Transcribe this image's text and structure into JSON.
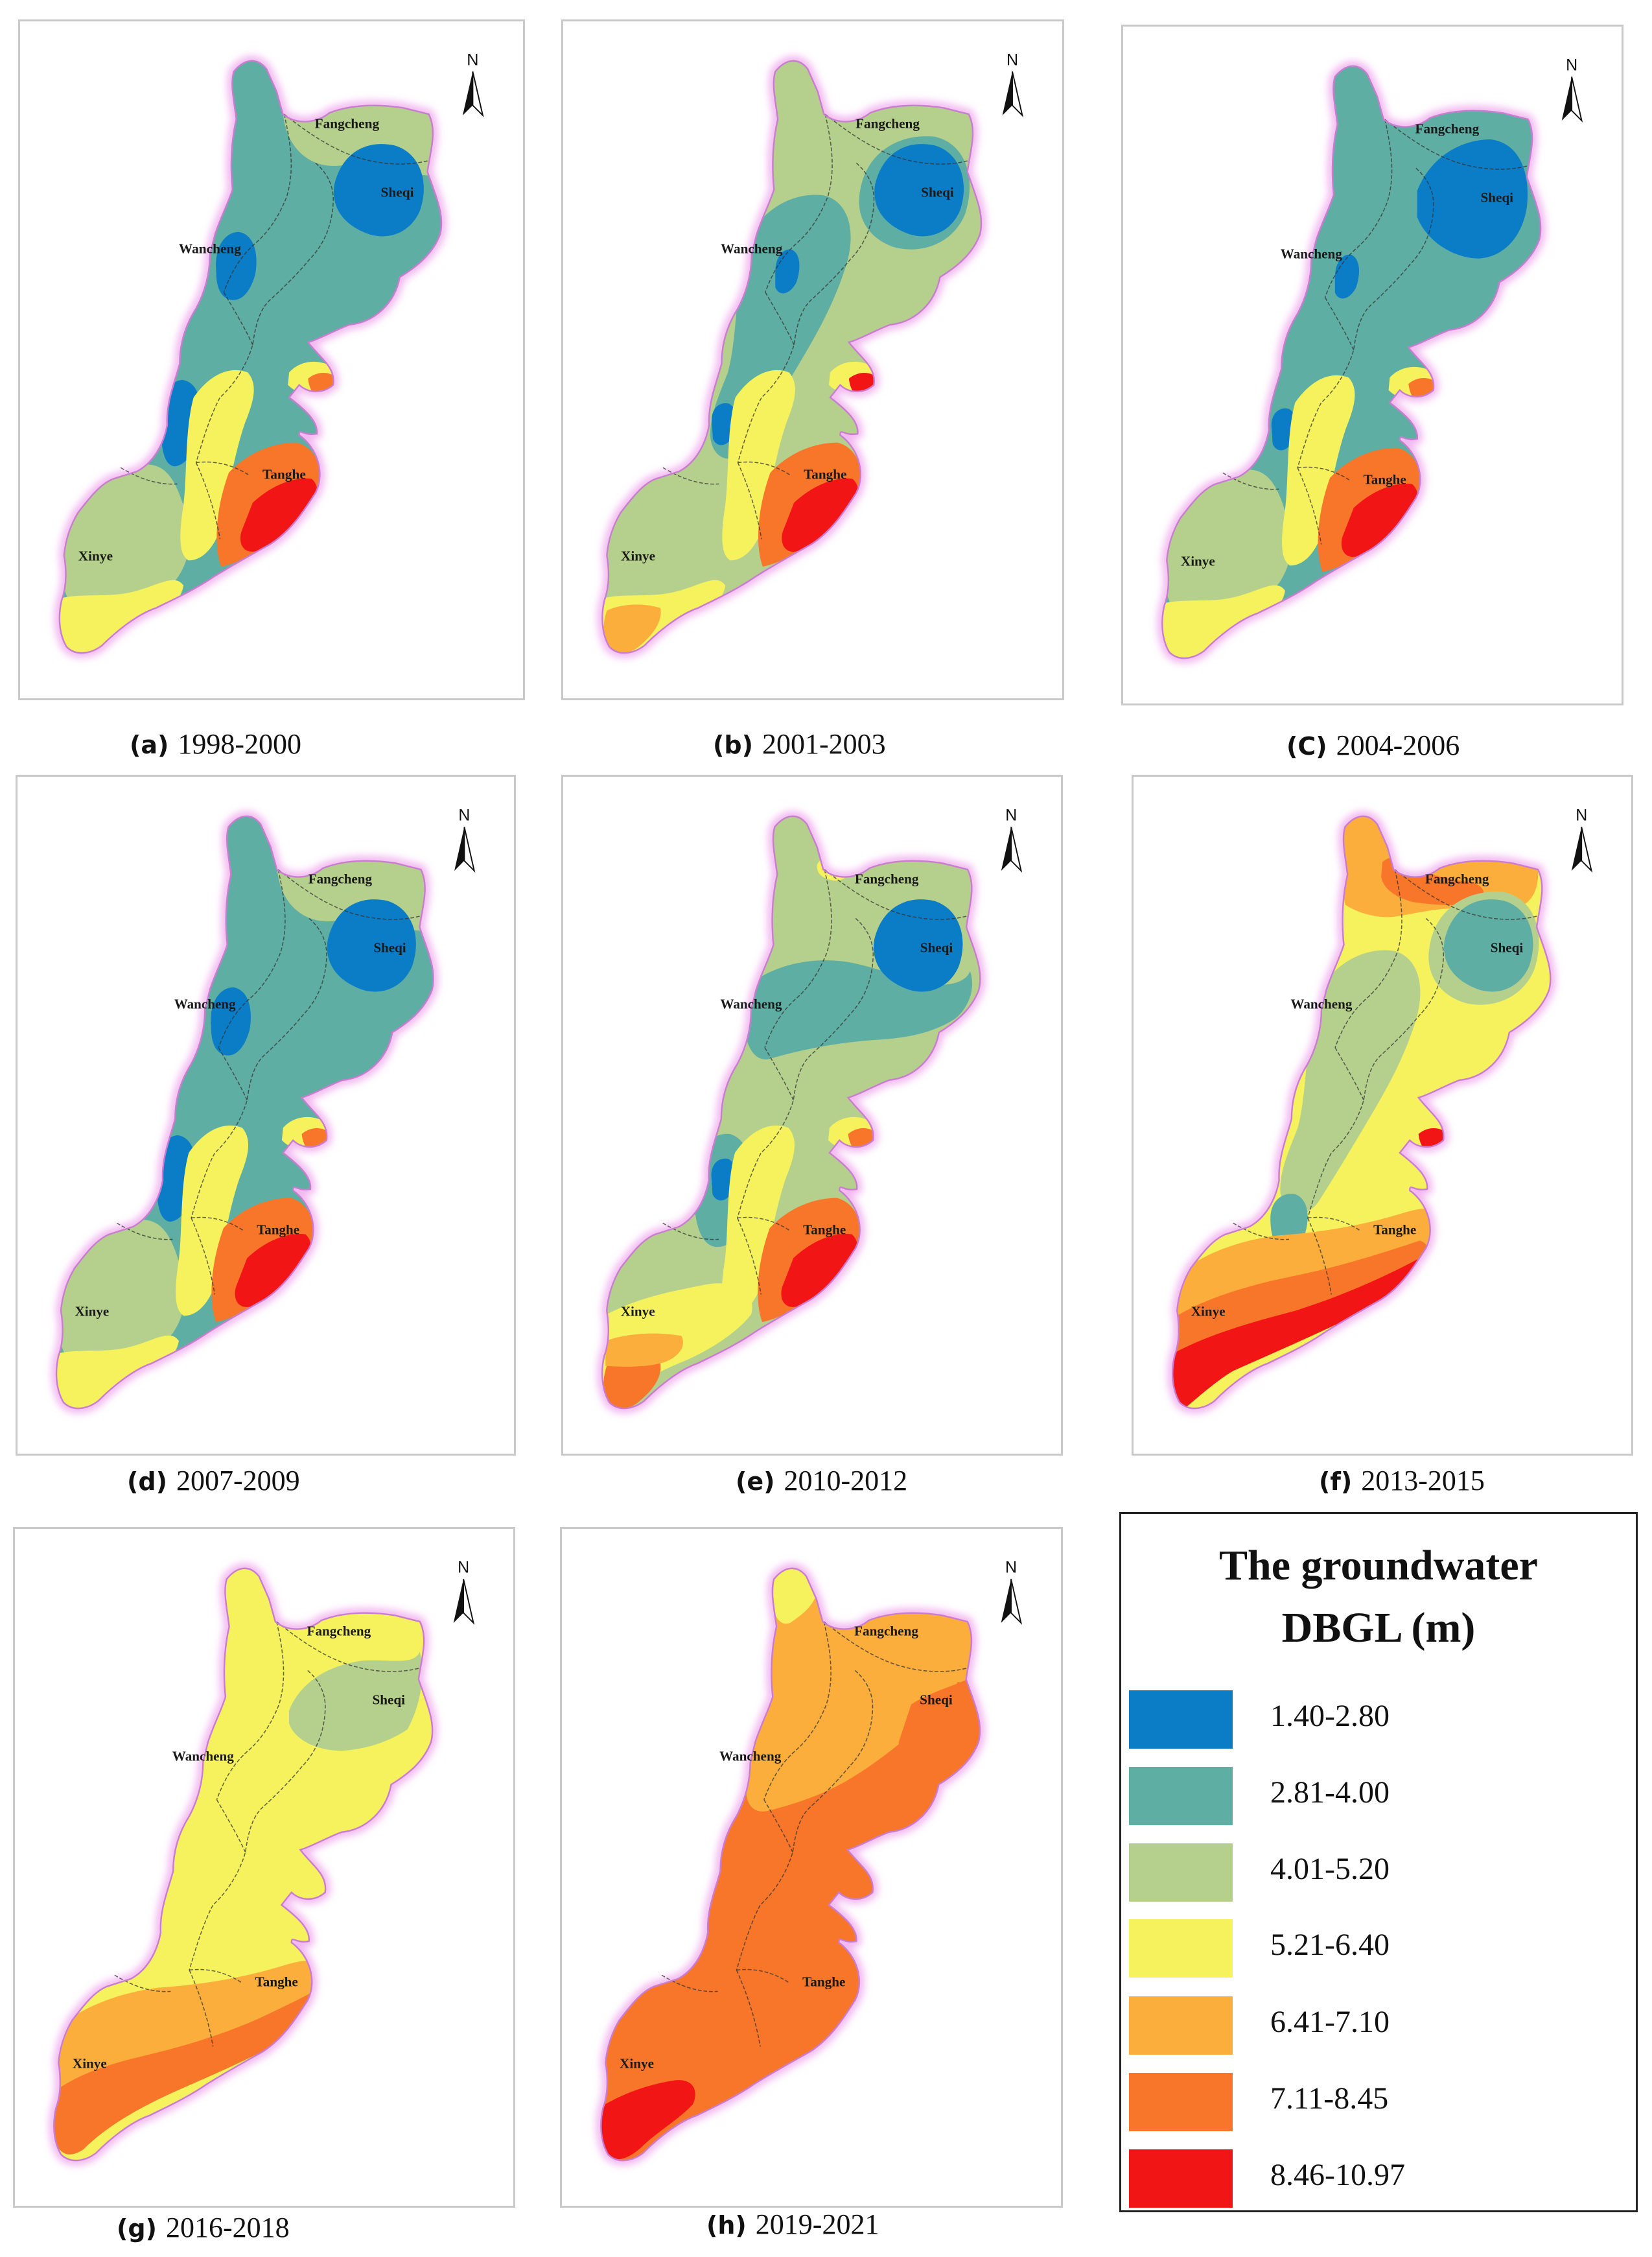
{
  "north_label": "N",
  "place_names": {
    "fangcheng": "Fangcheng",
    "sheqi": "Sheqi",
    "wancheng": "Wancheng",
    "tanghe": "Tanghe",
    "xinye": "Xinye"
  },
  "classes": [
    {
      "range": "1.40-2.80",
      "color": "#0b7dc6"
    },
    {
      "range": "2.81-4.00",
      "color": "#5faea3"
    },
    {
      "range": "4.01-5.20",
      "color": "#b5d08c"
    },
    {
      "range": "5.21-6.40",
      "color": "#f5f25e"
    },
    {
      "range": "6.41-7.10",
      "color": "#fbae3c"
    },
    {
      "range": "7.11-8.45",
      "color": "#f8762a"
    },
    {
      "range": "8.46-10.97",
      "color": "#f21515"
    }
  ],
  "legend": {
    "title_line1": "The groundwater",
    "title_line2": "DBGL (m)"
  },
  "panels": [
    {
      "id": "a",
      "label": "(a)",
      "period": "1998-2000",
      "background_class": 1,
      "northeast_class": 2,
      "zones": [
        {
          "zone": "sheqi",
          "class": 0
        },
        {
          "zone": "wancheng",
          "class": 0
        },
        {
          "zone": "west",
          "class": 0
        },
        {
          "zone": "west_band",
          "class": 2
        },
        {
          "zone": "south_tip",
          "class": 3
        },
        {
          "zone": "east_strip",
          "class": 3
        },
        {
          "zone": "tanghe_band",
          "class": 5
        },
        {
          "zone": "tanghe_core",
          "class": 6
        },
        {
          "zone": "ear_outer",
          "class": 3
        },
        {
          "zone": "ear_inner",
          "class": 5
        }
      ]
    },
    {
      "id": "b",
      "label": "(b)",
      "period": "2001-2003",
      "background_class": 2,
      "northeast_class": 2,
      "zones": [
        {
          "zone": "sheqi_halo",
          "class": 1
        },
        {
          "zone": "sheqi",
          "class": 0
        },
        {
          "zone": "central_band",
          "class": 1
        },
        {
          "zone": "wancheng_small",
          "class": 0
        },
        {
          "zone": "west_small",
          "class": 0
        },
        {
          "zone": "south_tip",
          "class": 3
        },
        {
          "zone": "xinye_tip",
          "class": 4
        },
        {
          "zone": "east_strip",
          "class": 3
        },
        {
          "zone": "tanghe_band",
          "class": 5
        },
        {
          "zone": "tanghe_core",
          "class": 6
        },
        {
          "zone": "ear_outer",
          "class": 3
        },
        {
          "zone": "ear_inner",
          "class": 6
        }
      ]
    },
    {
      "id": "c",
      "label": "(C)",
      "period": "2004-2006",
      "background_class": 1,
      "northeast_class": 1,
      "zones": [
        {
          "zone": "sheqi_large",
          "class": 0
        },
        {
          "zone": "wancheng_small",
          "class": 0
        },
        {
          "zone": "west_small",
          "class": 0
        },
        {
          "zone": "west_band",
          "class": 2
        },
        {
          "zone": "south_tip",
          "class": 3
        },
        {
          "zone": "east_strip",
          "class": 3
        },
        {
          "zone": "tanghe_band",
          "class": 5
        },
        {
          "zone": "tanghe_core",
          "class": 6
        },
        {
          "zone": "ear_outer",
          "class": 3
        },
        {
          "zone": "ear_inner",
          "class": 5
        }
      ]
    },
    {
      "id": "d",
      "label": "(d)",
      "period": "2007-2009",
      "background_class": 1,
      "northeast_class": 2,
      "zones": [
        {
          "zone": "sheqi",
          "class": 0
        },
        {
          "zone": "wancheng",
          "class": 0
        },
        {
          "zone": "west",
          "class": 0
        },
        {
          "zone": "west_band",
          "class": 2
        },
        {
          "zone": "south_tip",
          "class": 3
        },
        {
          "zone": "east_strip",
          "class": 3
        },
        {
          "zone": "tanghe_band",
          "class": 5
        },
        {
          "zone": "tanghe_core",
          "class": 6
        },
        {
          "zone": "ear_outer",
          "class": 3
        },
        {
          "zone": "ear_inner",
          "class": 5
        }
      ]
    },
    {
      "id": "e",
      "label": "(e)",
      "period": "2010-2012",
      "background_class": 2,
      "northeast_class": 2,
      "zones": [
        {
          "zone": "mid_band",
          "class": 1
        },
        {
          "zone": "sheqi",
          "class": 0
        },
        {
          "zone": "west_halo",
          "class": 1
        },
        {
          "zone": "west_small",
          "class": 0
        },
        {
          "zone": "south_wide",
          "class": 3
        },
        {
          "zone": "xinye_tip",
          "class": 5
        },
        {
          "zone": "xinye_mid",
          "class": 4
        },
        {
          "zone": "east_strip",
          "class": 3
        },
        {
          "zone": "tanghe_band",
          "class": 5
        },
        {
          "zone": "tanghe_core",
          "class": 6
        },
        {
          "zone": "ear_outer",
          "class": 3
        },
        {
          "zone": "ear_inner",
          "class": 5
        },
        {
          "zone": "north_blob",
          "class": 3
        }
      ]
    },
    {
      "id": "f",
      "label": "(f)",
      "period": "2013-2015",
      "background_class": 3,
      "northeast_class": 3,
      "zones": [
        {
          "zone": "north_cap",
          "class": 4
        },
        {
          "zone": "north_cap_inner",
          "class": 5
        },
        {
          "zone": "sheqi_halo",
          "class": 2
        },
        {
          "zone": "sheqi",
          "class": 1
        },
        {
          "zone": "central_band",
          "class": 2
        },
        {
          "zone": "west_small_large",
          "class": 1
        },
        {
          "zone": "south_band_orange",
          "class": 4
        },
        {
          "zone": "south_band_deep",
          "class": 5
        },
        {
          "zone": "south_red",
          "class": 6
        },
        {
          "zone": "ear_outer",
          "class": 3
        },
        {
          "zone": "ear_inner",
          "class": 6
        }
      ]
    },
    {
      "id": "g",
      "label": "(g)",
      "period": "2016-2018",
      "background_class": 3,
      "northeast_class": 3,
      "zones": [
        {
          "zone": "sheqi_green",
          "class": 2
        },
        {
          "zone": "south_band_orange",
          "class": 4
        },
        {
          "zone": "south_deep_g",
          "class": 5
        }
      ]
    },
    {
      "id": "h",
      "label": "(h)",
      "period": "2019-2021",
      "background_class": 5,
      "northeast_class": 4,
      "zones": [
        {
          "zone": "north_orange",
          "class": 4
        },
        {
          "zone": "north_yellow",
          "class": 3
        },
        {
          "zone": "sheqi_deep",
          "class": 5
        },
        {
          "zone": "xinye_red_tip",
          "class": 6
        }
      ]
    }
  ]
}
